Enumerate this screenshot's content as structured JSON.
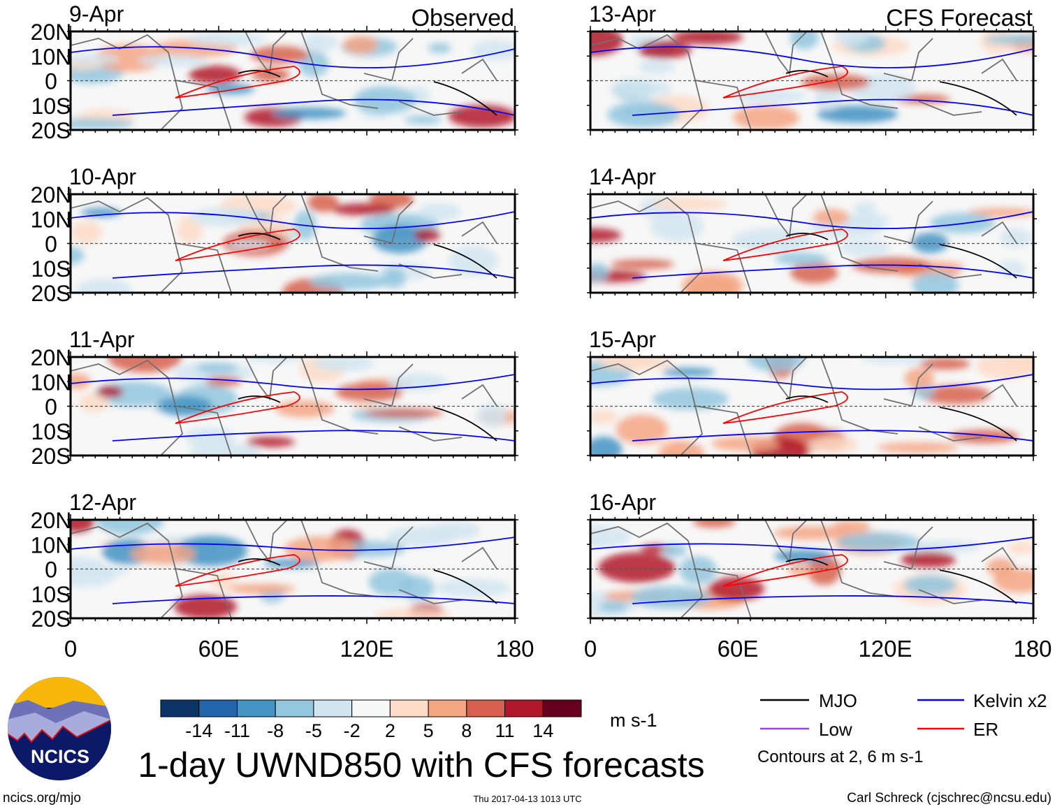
{
  "header": {
    "left_label": "Observed",
    "right_label": "CFS Forecast"
  },
  "panels": {
    "left": [
      {
        "date": "9-Apr"
      },
      {
        "date": "10-Apr"
      },
      {
        "date": "11-Apr"
      },
      {
        "date": "12-Apr"
      }
    ],
    "right": [
      {
        "date": "13-Apr"
      },
      {
        "date": "14-Apr"
      },
      {
        "date": "15-Apr"
      },
      {
        "date": "16-Apr"
      }
    ]
  },
  "axes": {
    "lat_ticks": [
      "20N",
      "10N",
      "0",
      "10S",
      "20S"
    ],
    "lon_ticks": [
      "0",
      "60E",
      "120E",
      "180"
    ]
  },
  "colorbar": {
    "colors": [
      "#0a3366",
      "#2166ac",
      "#4393c3",
      "#92c5de",
      "#d1e5f0",
      "#f7f7f7",
      "#fddbc7",
      "#f4a582",
      "#d6604d",
      "#b2182b",
      "#67001f"
    ],
    "labels": [
      "-14",
      "-11",
      "-8",
      "-5",
      "-2",
      "2",
      "5",
      "8",
      "11",
      "14"
    ],
    "units": "m s-1"
  },
  "legend": {
    "items": [
      {
        "label": "MJO",
        "color": "#000000"
      },
      {
        "label": "Kelvin x2",
        "color": "#0000ff"
      },
      {
        "label": "Low",
        "color": "#a040e0"
      },
      {
        "label": "ER",
        "color": "#ff0000"
      }
    ],
    "note": "Contours at 2, 6 m s-1"
  },
  "title": "1-day UWND850 with CFS forecasts",
  "logo": {
    "text": "NCICS"
  },
  "footer": {
    "url": "ncics.org/mjo",
    "timestamp": "Thu 2017-04-13 1013 UTC",
    "credit": "Carl Schreck (cjschrec@ncsu.edu)"
  }
}
